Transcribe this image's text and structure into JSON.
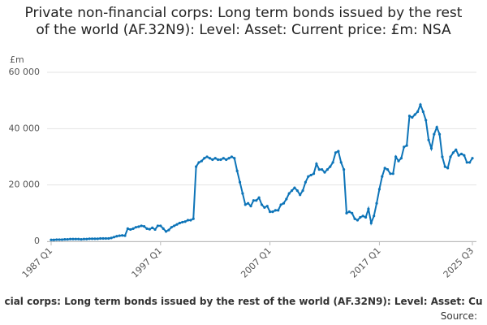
{
  "chart_data": {
    "type": "line",
    "title": "Private non-financial corps: Long term bonds issued by the rest of the world (AF.32N9): Level: Asset: Current price: £m: NSA",
    "y_label": "£m",
    "footnote": "cial corps: Long term bonds issued by the rest of the world (AF.32N9): Level: Asset: Cu",
    "source": "Source:",
    "color": "#0d74b8",
    "grid": true,
    "ylim": [
      0,
      60000
    ],
    "yticks": [
      0,
      {
        "value": 20000,
        "label": "20 000"
      },
      {
        "value": 40000,
        "label": "40 000"
      },
      {
        "value": 60000,
        "label": "60 000"
      }
    ],
    "categories": [
      "1987 Q1",
      null,
      null,
      null,
      null,
      null,
      null,
      null,
      null,
      null,
      null,
      null,
      null,
      null,
      null,
      null,
      null,
      null,
      null,
      null,
      null,
      null,
      null,
      null,
      null,
      null,
      null,
      null,
      null,
      null,
      null,
      null,
      null,
      null,
      null,
      null,
      null,
      null,
      null,
      null,
      "1997 Q1",
      null,
      null,
      null,
      null,
      null,
      null,
      null,
      null,
      null,
      null,
      null,
      null,
      null,
      null,
      null,
      null,
      null,
      null,
      null,
      null,
      null,
      null,
      null,
      null,
      null,
      null,
      null,
      null,
      null,
      null,
      null,
      null,
      null,
      null,
      null,
      null,
      null,
      null,
      null,
      "2007 Q1",
      null,
      null,
      null,
      null,
      null,
      null,
      null,
      null,
      null,
      null,
      null,
      null,
      null,
      null,
      null,
      null,
      null,
      null,
      null,
      null,
      null,
      null,
      null,
      null,
      null,
      null,
      null,
      null,
      null,
      null,
      null,
      null,
      null,
      null,
      null,
      null,
      null,
      null,
      null,
      "2017 Q1",
      null,
      null,
      null,
      null,
      null,
      null,
      null,
      null,
      null,
      null,
      null,
      null,
      null,
      null,
      null,
      null,
      null,
      null,
      null,
      null,
      null,
      null,
      null,
      null,
      null,
      null,
      null,
      null,
      null,
      null,
      null,
      null,
      null,
      "2025 Q3"
    ],
    "values": [
      500,
      500,
      600,
      600,
      600,
      700,
      700,
      800,
      800,
      800,
      800,
      700,
      800,
      800,
      900,
      900,
      900,
      900,
      1000,
      1000,
      1000,
      1000,
      1200,
      1500,
      1800,
      2000,
      2100,
      2000,
      4500,
      4200,
      4500,
      5000,
      5200,
      5500,
      5300,
      4500,
      4300,
      4800,
      4200,
      5500,
      5500,
      4500,
      3500,
      4000,
      5000,
      5500,
      6000,
      6500,
      6800,
      7000,
      7500,
      7500,
      8000,
      26500,
      28000,
      28500,
      29500,
      30000,
      29500,
      29000,
      29500,
      29000,
      29000,
      29500,
      29000,
      29500,
      30000,
      29500,
      25000,
      21000,
      17000,
      13000,
      13500,
      12500,
      14500,
      14500,
      15500,
      13000,
      12000,
      12500,
      10500,
      10500,
      11000,
      11000,
      13000,
      13500,
      15000,
      17000,
      18000,
      19000,
      18000,
      16500,
      18000,
      21000,
      23000,
      23500,
      24000,
      27500,
      25500,
      25500,
      24500,
      25500,
      26500,
      28000,
      31500,
      32000,
      28000,
      25500,
      10000,
      10500,
      10000,
      8000,
      7500,
      8500,
      9000,
      8500,
      11500,
      6500,
      9000,
      13500,
      18500,
      23000,
      26000,
      25500,
      24000,
      24000,
      30000,
      28500,
      29500,
      33500,
      34000,
      44500,
      44000,
      45000,
      46000,
      48500,
      46000,
      43000,
      36000,
      33000,
      38000,
      40500,
      38000,
      30000,
      26500,
      26000,
      30000,
      31500,
      32500,
      30500,
      31000,
      30500,
      28000,
      28000,
      29500
    ]
  }
}
